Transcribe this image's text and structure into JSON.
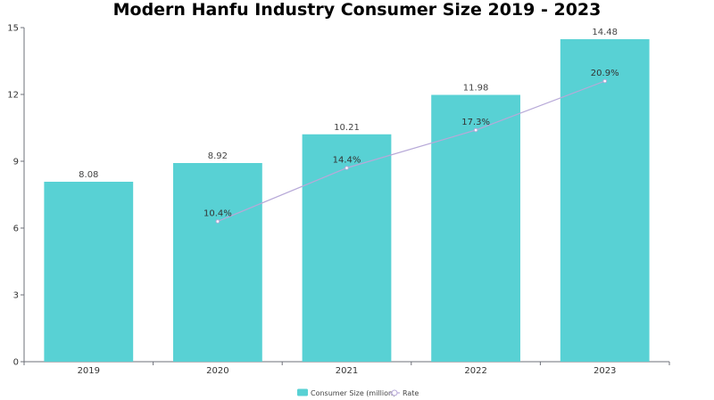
{
  "chart_data": {
    "type": "bar",
    "title": "Modern Hanfu Industry Consumer Size 2019 - 2023",
    "categories": [
      "2019",
      "2020",
      "2021",
      "2022",
      "2023"
    ],
    "series": [
      {
        "name": "Consumer Size (million)",
        "type": "bar",
        "values": [
          8.08,
          8.92,
          10.21,
          11.98,
          14.48
        ],
        "labels": [
          "8.08",
          "8.92",
          "10.21",
          "11.98",
          "14.48"
        ],
        "color": "#58d1d4"
      },
      {
        "name": "Rate",
        "type": "line",
        "values": [
          null,
          6.3,
          8.7,
          10.4,
          12.6
        ],
        "labels": [
          "",
          "10.4%",
          "14.4%",
          "17.3%",
          "20.9%"
        ],
        "color": "#b7a9d8"
      }
    ],
    "ylim": [
      0,
      15
    ],
    "yticks": [
      "0",
      "3",
      "6",
      "9",
      "12",
      "15"
    ],
    "xlabel": "",
    "ylabel": "",
    "grid": false,
    "legend_position": "bottom-center"
  }
}
